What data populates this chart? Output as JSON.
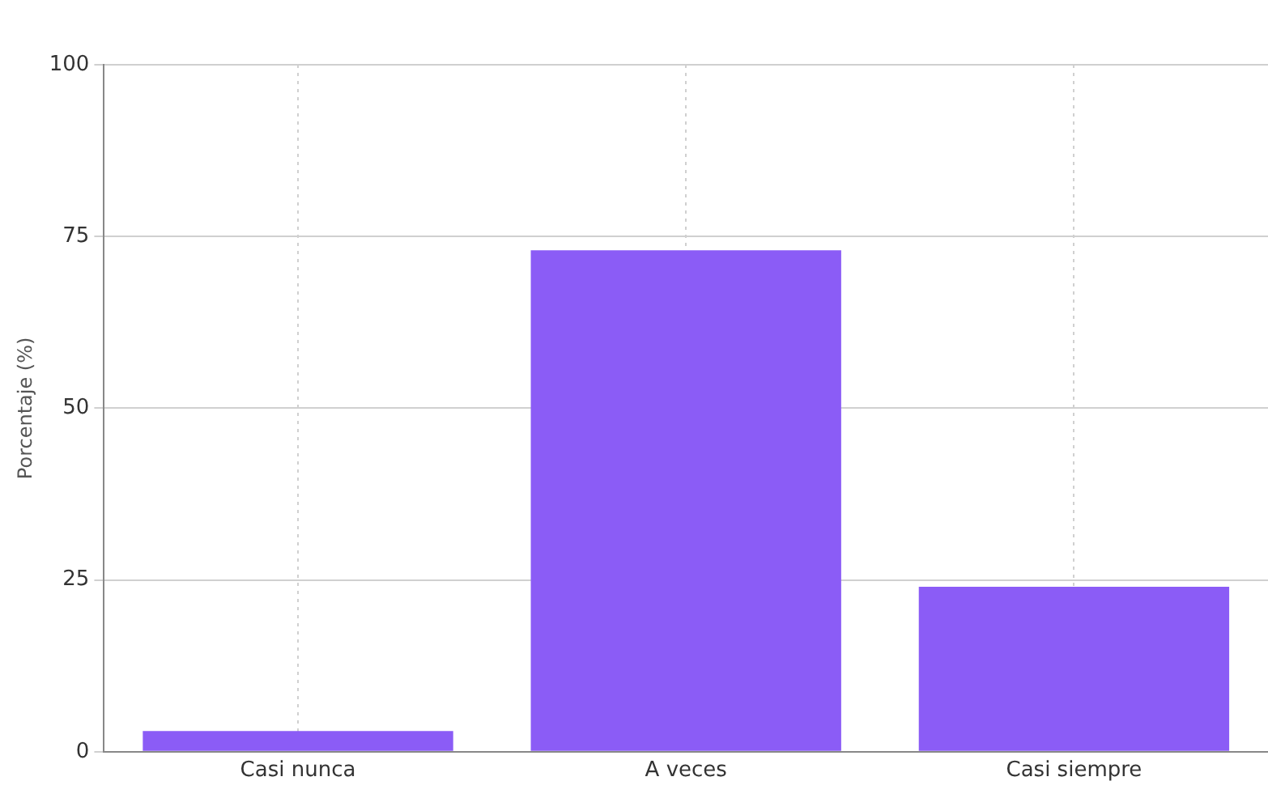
{
  "chart_data": {
    "type": "bar",
    "ylabel": "Porcentaje (%)",
    "categories": [
      "Casi nunca",
      "A veces",
      "Casi siempre"
    ],
    "values": [
      3,
      73,
      24
    ],
    "color": "#8b5cf6",
    "ylim": [
      0,
      100
    ],
    "yticks": [
      0,
      25,
      50,
      75,
      100
    ],
    "grid": true
  }
}
